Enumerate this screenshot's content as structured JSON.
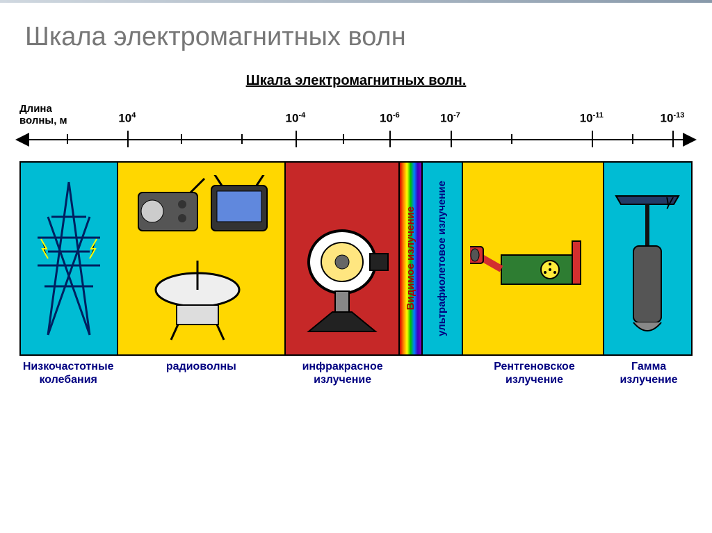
{
  "slide_title": "Шкала электромагнитных волн",
  "inner_title": "Шкала электромагнитных волн.",
  "axis_label": {
    "line1": "Длина",
    "line2": "волны, м"
  },
  "ticks": [
    {
      "pct": 16,
      "base": "10",
      "exp": "4"
    },
    {
      "pct": 41,
      "base": "10",
      "exp": "-4"
    },
    {
      "pct": 55,
      "base": "10",
      "exp": "-6"
    },
    {
      "pct": 64,
      "base": "10",
      "exp": "-7"
    },
    {
      "pct": 85,
      "base": "10",
      "exp": "-11"
    },
    {
      "pct": 97,
      "base": "10",
      "exp": "-13"
    }
  ],
  "minor_ticks": [
    7,
    24,
    33,
    48,
    73,
    91
  ],
  "bands": [
    {
      "key": "low",
      "width_pct": 14.5,
      "bg": "#00bcd4",
      "label": "Низкочастотные колебания"
    },
    {
      "key": "radio",
      "width_pct": 25,
      "bg": "#ffd700",
      "label": "радиоволны"
    },
    {
      "key": "ir",
      "width_pct": 17,
      "bg": "#c62828",
      "label": "инфракрасное излучение"
    },
    {
      "key": "vis",
      "width_pct": 3.5,
      "bg": "rainbow",
      "label": "",
      "vtext": "Видимое излучение",
      "vcolor": "#aa0000"
    },
    {
      "key": "uv",
      "width_pct": 6,
      "bg": "#00bcd4",
      "label": "",
      "vtext": "ультрафиолетовое излучение",
      "vcolor": "#000080"
    },
    {
      "key": "xray",
      "width_pct": 21,
      "bg": "#ffd700",
      "label": "Рентгеновское излучение"
    },
    {
      "key": "gamma",
      "width_pct": 13,
      "bg": "#00bcd4",
      "label": "Гамма излучение"
    }
  ],
  "colors": {
    "title": "#777777",
    "navy": "#000080"
  }
}
